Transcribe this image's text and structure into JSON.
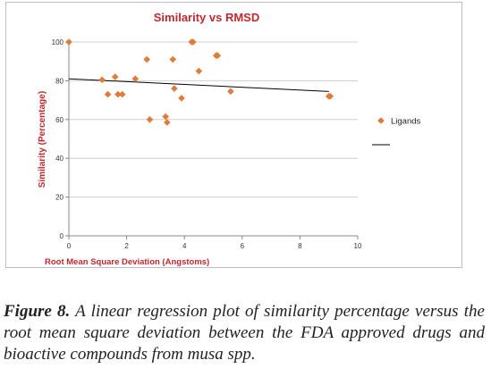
{
  "chart_data": {
    "type": "scatter",
    "title": "Similarity vs RMSD",
    "xlabel": "Root Mean Square Deviation (Angstoms)",
    "ylabel": "Similarity  (Percentage)",
    "xlim": [
      0,
      10
    ],
    "ylim": [
      0,
      100
    ],
    "x_ticks": [
      0,
      2,
      4,
      6,
      8,
      10
    ],
    "y_ticks": [
      0,
      20,
      40,
      60,
      80,
      100
    ],
    "grid": "horizontal",
    "legend_position": "right",
    "series": [
      {
        "name": "Ligands",
        "color": "#e07b39",
        "marker": "diamond",
        "x": [
          0.0,
          1.15,
          1.35,
          1.6,
          1.7,
          1.85,
          2.3,
          2.7,
          2.8,
          3.35,
          3.4,
          3.6,
          3.65,
          3.9,
          4.25,
          4.3,
          4.5,
          5.1,
          5.15,
          5.6,
          9.0,
          9.05
        ],
        "y": [
          100,
          80.5,
          73,
          82,
          73,
          73,
          81,
          91,
          60,
          61.5,
          58.5,
          91,
          76,
          71,
          100,
          100,
          85,
          93,
          93,
          74.5,
          72,
          72
        ]
      }
    ],
    "trendline": {
      "type": "linear",
      "x": [
        0,
        9
      ],
      "y": [
        81,
        74.5
      ],
      "color": "#000000"
    }
  },
  "caption": {
    "label": "Figure 8.",
    "text": " A linear regression plot of similarity percentage versus the root mean square deviation between the FDA approved drugs and bioactive compounds from musa spp."
  }
}
